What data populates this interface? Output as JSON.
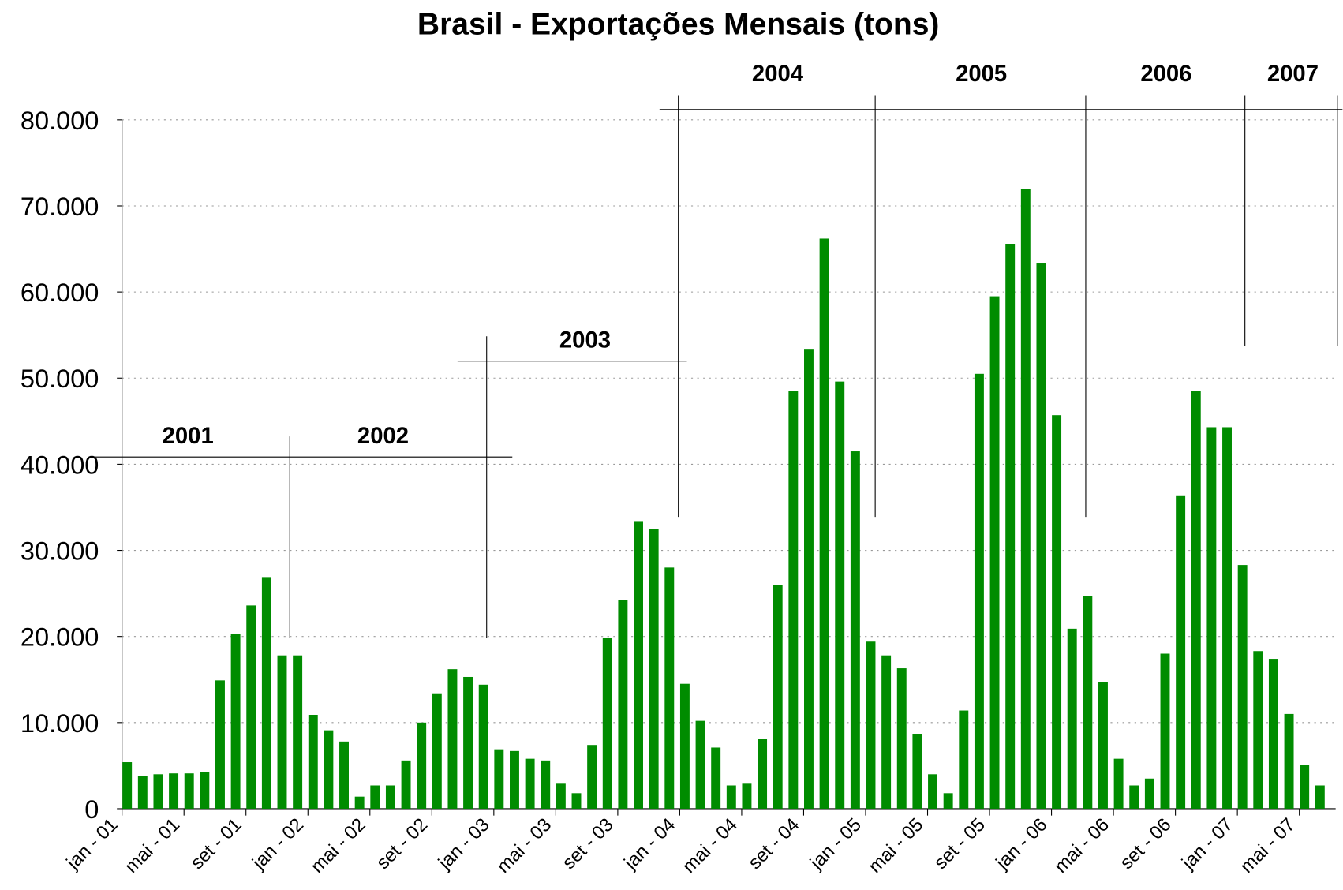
{
  "chart_data": {
    "type": "bar",
    "title": "Brasil - Exportações Mensais (tons)",
    "categories": [
      "jan - 01",
      null,
      null,
      null,
      "mai - 01",
      null,
      null,
      null,
      "set - 01",
      null,
      null,
      null,
      "jan - 02",
      null,
      null,
      null,
      "mai - 02",
      null,
      null,
      null,
      "set - 02",
      null,
      null,
      null,
      "jan - 03",
      null,
      null,
      null,
      "mai - 03",
      null,
      null,
      null,
      "set - 03",
      null,
      null,
      null,
      "jan - 04",
      null,
      null,
      null,
      "mai - 04",
      null,
      null,
      null,
      "set - 04",
      null,
      null,
      null,
      "jan - 05",
      null,
      null,
      null,
      "mai - 05",
      null,
      null,
      null,
      "set - 05",
      null,
      null,
      null,
      "jan - 06",
      null,
      null,
      null,
      "mai - 06",
      null,
      null,
      null,
      "set - 06",
      null,
      null,
      null,
      "jan - 07",
      null,
      null,
      null,
      "mai - 07",
      null
    ],
    "values": [
      5400,
      3800,
      4000,
      4100,
      4100,
      4300,
      14900,
      20300,
      23600,
      26900,
      17800,
      17800,
      10900,
      9100,
      7800,
      1400,
      2700,
      2700,
      5600,
      10000,
      13400,
      16200,
      15300,
      14400,
      6900,
      6700,
      5800,
      5600,
      2900,
      1800,
      7400,
      19800,
      24200,
      33400,
      32500,
      28000,
      14500,
      10200,
      7100,
      2700,
      2900,
      8100,
      26000,
      48500,
      53400,
      66200,
      49600,
      41500,
      19400,
      17800,
      16300,
      8700,
      4000,
      1800,
      11400,
      50500,
      59500,
      65600,
      72000,
      63400,
      45700,
      20900,
      24700,
      14700,
      5800,
      2700,
      3500,
      18000,
      36300,
      48500,
      44300,
      44300,
      28300,
      18300,
      17400,
      11000,
      5100,
      2700
    ],
    "color": "#008c00",
    "ylim": [
      0,
      80000
    ],
    "yticks": [
      0,
      {
        "value": 10000,
        "label": "10.000"
      },
      {
        "value": 20000,
        "label": "20.000"
      },
      {
        "value": 30000,
        "label": "30.000"
      },
      {
        "value": 40000,
        "label": "40.000"
      },
      {
        "value": 50000,
        "label": "50.000"
      },
      {
        "value": 60000,
        "label": "60.000"
      },
      {
        "value": 70000,
        "label": "70.000"
      },
      {
        "value": 80000,
        "label": "80.000"
      }
    ],
    "grid": true,
    "annotations": [
      "2001",
      "2002",
      "2003",
      "2004",
      "2005",
      "2006",
      "2007"
    ]
  }
}
